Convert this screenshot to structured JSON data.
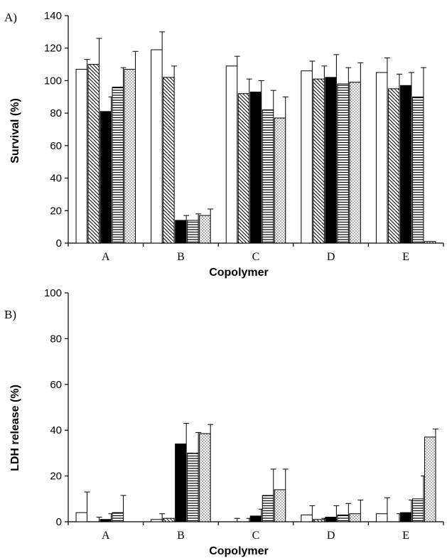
{
  "chart_data": [
    {
      "panel_label": "A)",
      "type": "bar",
      "xlabel": "Copolymer",
      "ylabel": "Survival (%)",
      "ylim": [
        0,
        140
      ],
      "yticks": [
        0,
        20,
        40,
        60,
        80,
        100,
        120,
        140
      ],
      "categories": [
        "A",
        "B",
        "C",
        "D",
        "E"
      ],
      "grid": false,
      "series": [
        {
          "pattern": "white",
          "values": [
            107,
            119,
            109,
            106,
            105
          ],
          "errors": [
            6,
            11,
            6,
            6,
            9
          ]
        },
        {
          "pattern": "diagonal-stripes",
          "values": [
            110,
            102,
            92,
            101,
            95
          ],
          "errors": [
            16,
            7,
            9,
            8,
            9
          ]
        },
        {
          "pattern": "solid-black",
          "values": [
            81,
            14,
            93,
            102,
            97
          ],
          "errors": [
            9,
            3,
            7,
            14,
            8
          ]
        },
        {
          "pattern": "horizontal-stripes",
          "values": [
            96,
            14,
            82,
            98,
            90
          ],
          "errors": [
            12,
            4,
            12,
            10,
            18
          ]
        },
        {
          "pattern": "dotted",
          "values": [
            107,
            17,
            77,
            99,
            1
          ],
          "errors": [
            11,
            4,
            13,
            12,
            0
          ]
        }
      ]
    },
    {
      "panel_label": "B)",
      "type": "bar",
      "xlabel": "Copolymer",
      "ylabel": "LDH release (%)",
      "ylim": [
        0,
        100
      ],
      "yticks": [
        0,
        20,
        40,
        60,
        80,
        100
      ],
      "categories": [
        "A",
        "B",
        "C",
        "D",
        "E"
      ],
      "grid": false,
      "series": [
        {
          "pattern": "white",
          "values": [
            4,
            1,
            0,
            3,
            3.5
          ],
          "errors": [
            9,
            2.5,
            1.5,
            4,
            7
          ]
        },
        {
          "pattern": "diagonal-stripes",
          "values": [
            0,
            1.5,
            0,
            1,
            0
          ],
          "errors": [
            2,
            0,
            1.5,
            0.5,
            3.5
          ]
        },
        {
          "pattern": "solid-black",
          "values": [
            1,
            34,
            2.5,
            2,
            4
          ],
          "errors": [
            2.5,
            9,
            3,
            5,
            5.5
          ]
        },
        {
          "pattern": "horizontal-stripes",
          "values": [
            4,
            30,
            11.5,
            3,
            10
          ],
          "errors": [
            7.5,
            9,
            11.5,
            5,
            10
          ]
        },
        {
          "pattern": "dotted",
          "values": [
            0,
            38.5,
            14,
            3.5,
            37
          ],
          "errors": [
            0,
            4,
            9,
            6,
            3.5
          ]
        }
      ]
    }
  ]
}
